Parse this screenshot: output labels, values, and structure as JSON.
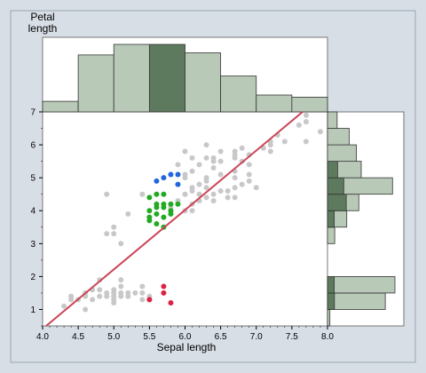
{
  "chart_data": {
    "type": "scatter",
    "title": "",
    "xlabel": "Sepal length",
    "ylabel": "Petal length",
    "xlim": [
      4.0,
      8.0
    ],
    "ylim": [
      0.5,
      7.0
    ],
    "xticks": [
      "4.0",
      "4.5",
      "5.0",
      "5.5",
      "6.0",
      "6.5",
      "7.0",
      "7.5",
      "8.0"
    ],
    "yticks": [
      "1",
      "2",
      "3",
      "4",
      "5",
      "6",
      "7"
    ],
    "grid": false,
    "colors": {
      "background": "#d7dee6",
      "panel": "#ffffff",
      "points_default": "#c8c8c8",
      "highlight_blue": "#2266dd",
      "highlight_green": "#22aa22",
      "highlight_red": "#dd2244",
      "fit_line": "#cc4455",
      "hist_bar": "#b9c9b8",
      "hist_bar_selected": "#5e7a5e"
    },
    "fit_line": {
      "x": [
        4.05,
        7.65
      ],
      "y": [
        0.5,
        7.0
      ]
    },
    "series": [
      {
        "color": "#c8c8c8",
        "points": [
          [
            4.3,
            1.1
          ],
          [
            4.4,
            1.3
          ],
          [
            4.4,
            1.4
          ],
          [
            4.5,
            1.3
          ],
          [
            4.6,
            1.0
          ],
          [
            4.6,
            1.4
          ],
          [
            4.6,
            1.5
          ],
          [
            4.7,
            1.3
          ],
          [
            4.7,
            1.6
          ],
          [
            4.8,
            1.4
          ],
          [
            4.8,
            1.6
          ],
          [
            4.8,
            1.9
          ],
          [
            4.9,
            1.4
          ],
          [
            4.9,
            1.5
          ],
          [
            5.0,
            1.2
          ],
          [
            5.0,
            1.3
          ],
          [
            5.0,
            1.4
          ],
          [
            5.0,
            1.5
          ],
          [
            5.0,
            1.6
          ],
          [
            5.1,
            1.4
          ],
          [
            5.1,
            1.5
          ],
          [
            5.1,
            1.7
          ],
          [
            5.1,
            1.9
          ],
          [
            5.2,
            1.4
          ],
          [
            5.2,
            1.5
          ],
          [
            5.3,
            1.5
          ],
          [
            5.4,
            1.3
          ],
          [
            5.4,
            1.5
          ],
          [
            5.4,
            1.7
          ],
          [
            5.5,
            1.3
          ],
          [
            5.5,
            1.4
          ],
          [
            4.9,
            4.5
          ],
          [
            4.9,
            3.3
          ],
          [
            5.0,
            3.5
          ],
          [
            5.0,
            3.3
          ],
          [
            5.1,
            3.0
          ],
          [
            5.2,
            3.9
          ],
          [
            5.4,
            4.5
          ],
          [
            5.5,
            3.8
          ],
          [
            5.8,
            3.9
          ],
          [
            5.8,
            4.0
          ],
          [
            5.8,
            4.1
          ],
          [
            6.0,
            4.0
          ],
          [
            6.0,
            4.5
          ],
          [
            6.0,
            5.0
          ],
          [
            6.0,
            5.1
          ],
          [
            6.1,
            4.0
          ],
          [
            6.1,
            4.6
          ],
          [
            6.1,
            4.7
          ],
          [
            6.1,
            5.6
          ],
          [
            6.2,
            4.3
          ],
          [
            6.2,
            4.5
          ],
          [
            6.2,
            4.8
          ],
          [
            6.2,
            5.4
          ],
          [
            6.3,
            4.4
          ],
          [
            6.3,
            4.7
          ],
          [
            6.3,
            4.9
          ],
          [
            6.3,
            5.0
          ],
          [
            6.3,
            5.6
          ],
          [
            6.3,
            6.0
          ],
          [
            6.4,
            4.3
          ],
          [
            6.4,
            4.5
          ],
          [
            6.4,
            5.3
          ],
          [
            6.4,
            5.5
          ],
          [
            6.4,
            5.6
          ],
          [
            6.5,
            4.6
          ],
          [
            6.5,
            5.1
          ],
          [
            6.5,
            5.5
          ],
          [
            6.5,
            5.8
          ],
          [
            6.6,
            4.4
          ],
          [
            6.6,
            4.6
          ],
          [
            6.7,
            4.4
          ],
          [
            6.7,
            4.7
          ],
          [
            6.7,
            5.0
          ],
          [
            6.7,
            5.2
          ],
          [
            6.7,
            5.6
          ],
          [
            6.7,
            5.7
          ],
          [
            6.7,
            5.8
          ],
          [
            6.8,
            4.8
          ],
          [
            6.8,
            5.5
          ],
          [
            6.8,
            5.9
          ],
          [
            6.9,
            4.9
          ],
          [
            6.9,
            5.1
          ],
          [
            6.9,
            5.4
          ],
          [
            6.9,
            5.7
          ],
          [
            7.0,
            4.7
          ],
          [
            7.1,
            5.9
          ],
          [
            7.2,
            5.8
          ],
          [
            7.2,
            6.0
          ],
          [
            7.2,
            6.1
          ],
          [
            7.3,
            6.3
          ],
          [
            7.4,
            6.1
          ],
          [
            7.6,
            6.6
          ],
          [
            7.7,
            6.1
          ],
          [
            7.7,
            6.7
          ],
          [
            7.7,
            6.9
          ],
          [
            7.9,
            6.4
          ],
          [
            6.0,
            5.8
          ],
          [
            6.1,
            5.2
          ],
          [
            5.9,
            5.4
          ],
          [
            5.9,
            4.3
          ],
          [
            6.1,
            4.2
          ]
        ]
      },
      {
        "color": "#2266dd",
        "points": [
          [
            5.6,
            4.9
          ],
          [
            5.7,
            5.0
          ],
          [
            5.8,
            5.1
          ],
          [
            5.9,
            5.1
          ],
          [
            5.9,
            4.8
          ]
        ]
      },
      {
        "color": "#22aa22",
        "points": [
          [
            5.5,
            4.4
          ],
          [
            5.5,
            4.0
          ],
          [
            5.5,
            3.8
          ],
          [
            5.5,
            3.7
          ],
          [
            5.6,
            4.5
          ],
          [
            5.6,
            4.2
          ],
          [
            5.6,
            4.1
          ],
          [
            5.6,
            3.9
          ],
          [
            5.6,
            3.6
          ],
          [
            5.7,
            4.5
          ],
          [
            5.7,
            4.2
          ],
          [
            5.7,
            4.1
          ],
          [
            5.7,
            3.5
          ],
          [
            5.8,
            4.2
          ],
          [
            5.8,
            4.0
          ],
          [
            5.8,
            3.9
          ],
          [
            5.9,
            4.2
          ],
          [
            5.7,
            3.8
          ]
        ]
      },
      {
        "color": "#dd2244",
        "points": [
          [
            5.5,
            1.3
          ],
          [
            5.7,
            1.7
          ],
          [
            5.7,
            1.5
          ],
          [
            5.8,
            1.2
          ]
        ]
      }
    ],
    "histogram_x": {
      "bins": [
        [
          4.0,
          4.5
        ],
        [
          4.5,
          5.0
        ],
        [
          5.0,
          5.5
        ],
        [
          5.5,
          6.0
        ],
        [
          6.0,
          6.5
        ],
        [
          6.5,
          7.0
        ],
        [
          7.0,
          7.5
        ],
        [
          7.5,
          8.0
        ]
      ],
      "counts": [
        5,
        27,
        32,
        32,
        28,
        17,
        8,
        7
      ],
      "selected": [
        3
      ]
    },
    "histogram_y": {
      "bins": [
        [
          0.5,
          1.0
        ],
        [
          1.0,
          1.5
        ],
        [
          1.5,
          2.0
        ],
        [
          2.0,
          2.5
        ],
        [
          2.5,
          3.0
        ],
        [
          3.0,
          3.5
        ],
        [
          3.5,
          4.0
        ],
        [
          4.0,
          4.5
        ],
        [
          4.5,
          5.0
        ],
        [
          5.0,
          5.5
        ],
        [
          5.5,
          6.0
        ],
        [
          6.0,
          6.5
        ],
        [
          6.5,
          7.0
        ]
      ],
      "counts": [
        1,
        24,
        28,
        0,
        0,
        3,
        8,
        13,
        27,
        14,
        12,
        9,
        4
      ],
      "selected_fraction": [
        0.0,
        0.12,
        0.1,
        0,
        0,
        0,
        0.35,
        0.6,
        0.25,
        0.3,
        0.0,
        0.0,
        0.0
      ]
    }
  }
}
